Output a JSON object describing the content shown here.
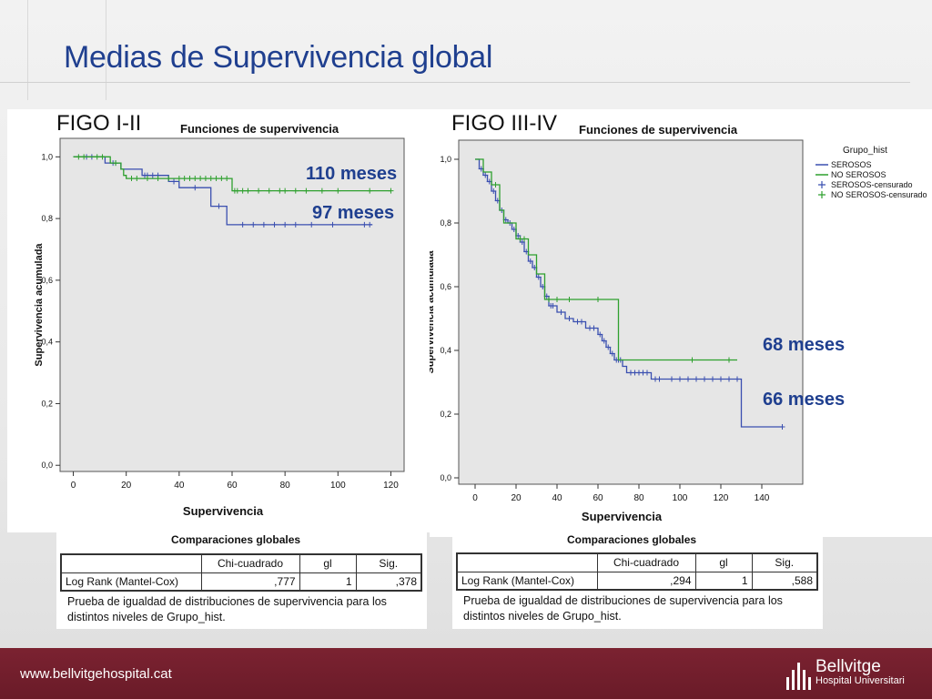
{
  "slide": {
    "title": "Medias de Supervivencia global",
    "footer_url": "www.bellvitgehospital.cat",
    "logo_name": "Bellvitge",
    "logo_sub": "Hospital Universitari"
  },
  "left": {
    "figo": "FIGO I-II",
    "ann1": "110 meses",
    "ann2": "97 meses",
    "cmp_title": "Comparaciones globales",
    "table": {
      "h1": "Chi-cuadrado",
      "h2": "gl",
      "h3": "Sig.",
      "row_label": "Log Rank (Mantel-Cox)",
      "chi": ",777",
      "gl": "1",
      "sig": ",378"
    },
    "note": "Prueba de igualdad de distribuciones de supervivencia para los distintos niveles de Grupo_hist."
  },
  "right": {
    "figo": "FIGO III-IV",
    "ann1": "68 meses",
    "ann2": "66 meses",
    "cmp_title": "Comparaciones globales",
    "table": {
      "h1": "Chi-cuadrado",
      "h2": "gl",
      "h3": "Sig.",
      "row_label": "Log Rank (Mantel-Cox)",
      "chi": ",294",
      "gl": "1",
      "sig": ",588"
    },
    "note": "Prueba de igualdad de distribuciones de supervivencia para los distintos niveles de Grupo_hist."
  },
  "chart_data": [
    {
      "type": "line",
      "title": "Funciones de supervivencia",
      "xlabel": "Supervivencia",
      "ylabel": "Supervivencia acumulada",
      "xlim": [
        -5,
        125
      ],
      "ylim": [
        -0.02,
        1.06
      ],
      "xticks": [
        0,
        20,
        40,
        60,
        80,
        100,
        120
      ],
      "yticks": [
        0.0,
        0.2,
        0.4,
        0.6,
        0.8,
        1.0
      ],
      "ytick_labels": [
        "0,0",
        "0,2",
        "0,4",
        "0,6",
        "0,8",
        "1,0"
      ],
      "grid": false,
      "background": "#e6e6e6",
      "series": [
        {
          "color": "#3a4fb0",
          "steps": [
            [
              0,
              1.0
            ],
            [
              12,
              1.0
            ],
            [
              12,
              0.98
            ],
            [
              18,
              0.98
            ],
            [
              18,
              0.96
            ],
            [
              26,
              0.96
            ],
            [
              26,
              0.94
            ],
            [
              36,
              0.94
            ],
            [
              36,
              0.92
            ],
            [
              40,
              0.92
            ],
            [
              40,
              0.9
            ],
            [
              52,
              0.9
            ],
            [
              52,
              0.84
            ],
            [
              58,
              0.84
            ],
            [
              58,
              0.78
            ],
            [
              113,
              0.78
            ]
          ],
          "censored": [
            [
              5,
              1.0
            ],
            [
              7,
              1.0
            ],
            [
              15,
              0.98
            ],
            [
              16,
              0.98
            ],
            [
              27,
              0.94
            ],
            [
              28,
              0.94
            ],
            [
              30,
              0.94
            ],
            [
              32,
              0.94
            ],
            [
              38,
              0.92
            ],
            [
              46,
              0.9
            ],
            [
              55,
              0.84
            ],
            [
              64,
              0.78
            ],
            [
              68,
              0.78
            ],
            [
              72,
              0.78
            ],
            [
              76,
              0.78
            ],
            [
              80,
              0.78
            ],
            [
              84,
              0.78
            ],
            [
              90,
              0.78
            ],
            [
              98,
              0.78
            ],
            [
              110,
              0.78
            ],
            [
              112,
              0.78
            ]
          ]
        },
        {
          "color": "#2ea02e",
          "steps": [
            [
              0,
              1.0
            ],
            [
              14,
              1.0
            ],
            [
              14,
              0.98
            ],
            [
              18,
              0.98
            ],
            [
              18,
              0.96
            ],
            [
              19,
              0.96
            ],
            [
              19,
              0.94
            ],
            [
              20,
              0.94
            ],
            [
              20,
              0.93
            ],
            [
              60,
              0.93
            ],
            [
              60,
              0.89
            ],
            [
              120,
              0.89
            ]
          ],
          "censored": [
            [
              2,
              1.0
            ],
            [
              4,
              1.0
            ],
            [
              9,
              1.0
            ],
            [
              11,
              1.0
            ],
            [
              16,
              0.98
            ],
            [
              22,
              0.93
            ],
            [
              24,
              0.93
            ],
            [
              28,
              0.93
            ],
            [
              32,
              0.93
            ],
            [
              36,
              0.93
            ],
            [
              40,
              0.93
            ],
            [
              42,
              0.93
            ],
            [
              44,
              0.93
            ],
            [
              46,
              0.93
            ],
            [
              48,
              0.93
            ],
            [
              50,
              0.93
            ],
            [
              52,
              0.93
            ],
            [
              54,
              0.93
            ],
            [
              56,
              0.93
            ],
            [
              58,
              0.93
            ],
            [
              61,
              0.89
            ],
            [
              62,
              0.89
            ],
            [
              64,
              0.89
            ],
            [
              66,
              0.89
            ],
            [
              70,
              0.89
            ],
            [
              74,
              0.89
            ],
            [
              78,
              0.89
            ],
            [
              80,
              0.89
            ],
            [
              84,
              0.89
            ],
            [
              88,
              0.89
            ],
            [
              94,
              0.89
            ],
            [
              100,
              0.89
            ],
            [
              112,
              0.89
            ],
            [
              120,
              0.89
            ]
          ]
        }
      ]
    },
    {
      "type": "line",
      "title": "Funciones de supervivencia",
      "xlabel": "Supervivencia",
      "ylabel": "Supervivencia acumulada",
      "xlim": [
        -8,
        160
      ],
      "ylim": [
        -0.02,
        1.06
      ],
      "xticks": [
        0,
        20,
        40,
        60,
        80,
        100,
        120,
        140
      ],
      "yticks": [
        0.0,
        0.2,
        0.4,
        0.6,
        0.8,
        1.0
      ],
      "ytick_labels": [
        "0,0",
        "0,2",
        "0,4",
        "0,6",
        "0,8",
        "1,0"
      ],
      "grid": false,
      "background": "#e6e6e6",
      "legend": {
        "title": "Grupo_hist",
        "position": "top-right",
        "items": [
          {
            "label": "SEROSOS",
            "color": "#3a4fb0",
            "marker": "line"
          },
          {
            "label": "NO SEROSOS",
            "color": "#2ea02e",
            "marker": "line"
          },
          {
            "label": "SEROSOS-censurado",
            "color": "#3a4fb0",
            "marker": "plus"
          },
          {
            "label": "NO SEROSOS-censurado",
            "color": "#2ea02e",
            "marker": "plus"
          }
        ]
      },
      "series": [
        {
          "color": "#3a4fb0",
          "steps": [
            [
              0,
              1.0
            ],
            [
              2,
              1.0
            ],
            [
              2,
              0.97
            ],
            [
              4,
              0.97
            ],
            [
              4,
              0.95
            ],
            [
              6,
              0.95
            ],
            [
              6,
              0.93
            ],
            [
              8,
              0.93
            ],
            [
              8,
              0.9
            ],
            [
              10,
              0.9
            ],
            [
              10,
              0.87
            ],
            [
              12,
              0.87
            ],
            [
              12,
              0.84
            ],
            [
              14,
              0.84
            ],
            [
              14,
              0.81
            ],
            [
              16,
              0.81
            ],
            [
              16,
              0.8
            ],
            [
              18,
              0.8
            ],
            [
              18,
              0.78
            ],
            [
              20,
              0.78
            ],
            [
              20,
              0.76
            ],
            [
              22,
              0.76
            ],
            [
              22,
              0.74
            ],
            [
              24,
              0.74
            ],
            [
              24,
              0.71
            ],
            [
              26,
              0.71
            ],
            [
              26,
              0.68
            ],
            [
              28,
              0.68
            ],
            [
              28,
              0.66
            ],
            [
              30,
              0.66
            ],
            [
              30,
              0.63
            ],
            [
              32,
              0.63
            ],
            [
              32,
              0.6
            ],
            [
              34,
              0.6
            ],
            [
              34,
              0.57
            ],
            [
              36,
              0.57
            ],
            [
              36,
              0.54
            ],
            [
              40,
              0.54
            ],
            [
              40,
              0.52
            ],
            [
              44,
              0.52
            ],
            [
              44,
              0.5
            ],
            [
              48,
              0.5
            ],
            [
              48,
              0.49
            ],
            [
              54,
              0.49
            ],
            [
              54,
              0.47
            ],
            [
              60,
              0.47
            ],
            [
              60,
              0.45
            ],
            [
              62,
              0.45
            ],
            [
              62,
              0.43
            ],
            [
              64,
              0.43
            ],
            [
              64,
              0.41
            ],
            [
              66,
              0.41
            ],
            [
              66,
              0.39
            ],
            [
              68,
              0.39
            ],
            [
              68,
              0.37
            ],
            [
              72,
              0.37
            ],
            [
              72,
              0.35
            ],
            [
              74,
              0.35
            ],
            [
              74,
              0.33
            ],
            [
              86,
              0.33
            ],
            [
              86,
              0.31
            ],
            [
              130,
              0.31
            ],
            [
              130,
              0.16
            ],
            [
              150,
              0.16
            ]
          ],
          "censored": [
            [
              3,
              0.97
            ],
            [
              5,
              0.95
            ],
            [
              7,
              0.93
            ],
            [
              9,
              0.9
            ],
            [
              11,
              0.87
            ],
            [
              13,
              0.84
            ],
            [
              15,
              0.81
            ],
            [
              17,
              0.8
            ],
            [
              19,
              0.78
            ],
            [
              21,
              0.76
            ],
            [
              23,
              0.74
            ],
            [
              25,
              0.71
            ],
            [
              27,
              0.68
            ],
            [
              29,
              0.66
            ],
            [
              31,
              0.63
            ],
            [
              33,
              0.6
            ],
            [
              35,
              0.57
            ],
            [
              37,
              0.54
            ],
            [
              38,
              0.54
            ],
            [
              42,
              0.52
            ],
            [
              46,
              0.5
            ],
            [
              50,
              0.49
            ],
            [
              52,
              0.49
            ],
            [
              56,
              0.47
            ],
            [
              58,
              0.47
            ],
            [
              61,
              0.45
            ],
            [
              63,
              0.43
            ],
            [
              65,
              0.41
            ],
            [
              67,
              0.39
            ],
            [
              69,
              0.37
            ],
            [
              70,
              0.37
            ],
            [
              71,
              0.37
            ],
            [
              76,
              0.33
            ],
            [
              78,
              0.33
            ],
            [
              80,
              0.33
            ],
            [
              82,
              0.33
            ],
            [
              84,
              0.33
            ],
            [
              88,
              0.31
            ],
            [
              90,
              0.31
            ],
            [
              96,
              0.31
            ],
            [
              100,
              0.31
            ],
            [
              104,
              0.31
            ],
            [
              108,
              0.31
            ],
            [
              112,
              0.31
            ],
            [
              116,
              0.31
            ],
            [
              120,
              0.31
            ],
            [
              124,
              0.31
            ],
            [
              128,
              0.31
            ],
            [
              150,
              0.16
            ]
          ]
        },
        {
          "color": "#2ea02e",
          "steps": [
            [
              0,
              1.0
            ],
            [
              4,
              1.0
            ],
            [
              4,
              0.96
            ],
            [
              8,
              0.96
            ],
            [
              8,
              0.92
            ],
            [
              12,
              0.92
            ],
            [
              12,
              0.84
            ],
            [
              14,
              0.84
            ],
            [
              14,
              0.8
            ],
            [
              20,
              0.8
            ],
            [
              20,
              0.75
            ],
            [
              26,
              0.75
            ],
            [
              26,
              0.7
            ],
            [
              30,
              0.7
            ],
            [
              30,
              0.64
            ],
            [
              34,
              0.64
            ],
            [
              34,
              0.56
            ],
            [
              70,
              0.56
            ],
            [
              70,
              0.37
            ],
            [
              128,
              0.37
            ]
          ],
          "censored": [
            [
              10,
              0.92
            ],
            [
              22,
              0.75
            ],
            [
              24,
              0.75
            ],
            [
              36,
              0.56
            ],
            [
              40,
              0.56
            ],
            [
              46,
              0.56
            ],
            [
              60,
              0.56
            ],
            [
              106,
              0.37
            ],
            [
              124,
              0.37
            ]
          ]
        }
      ]
    }
  ]
}
